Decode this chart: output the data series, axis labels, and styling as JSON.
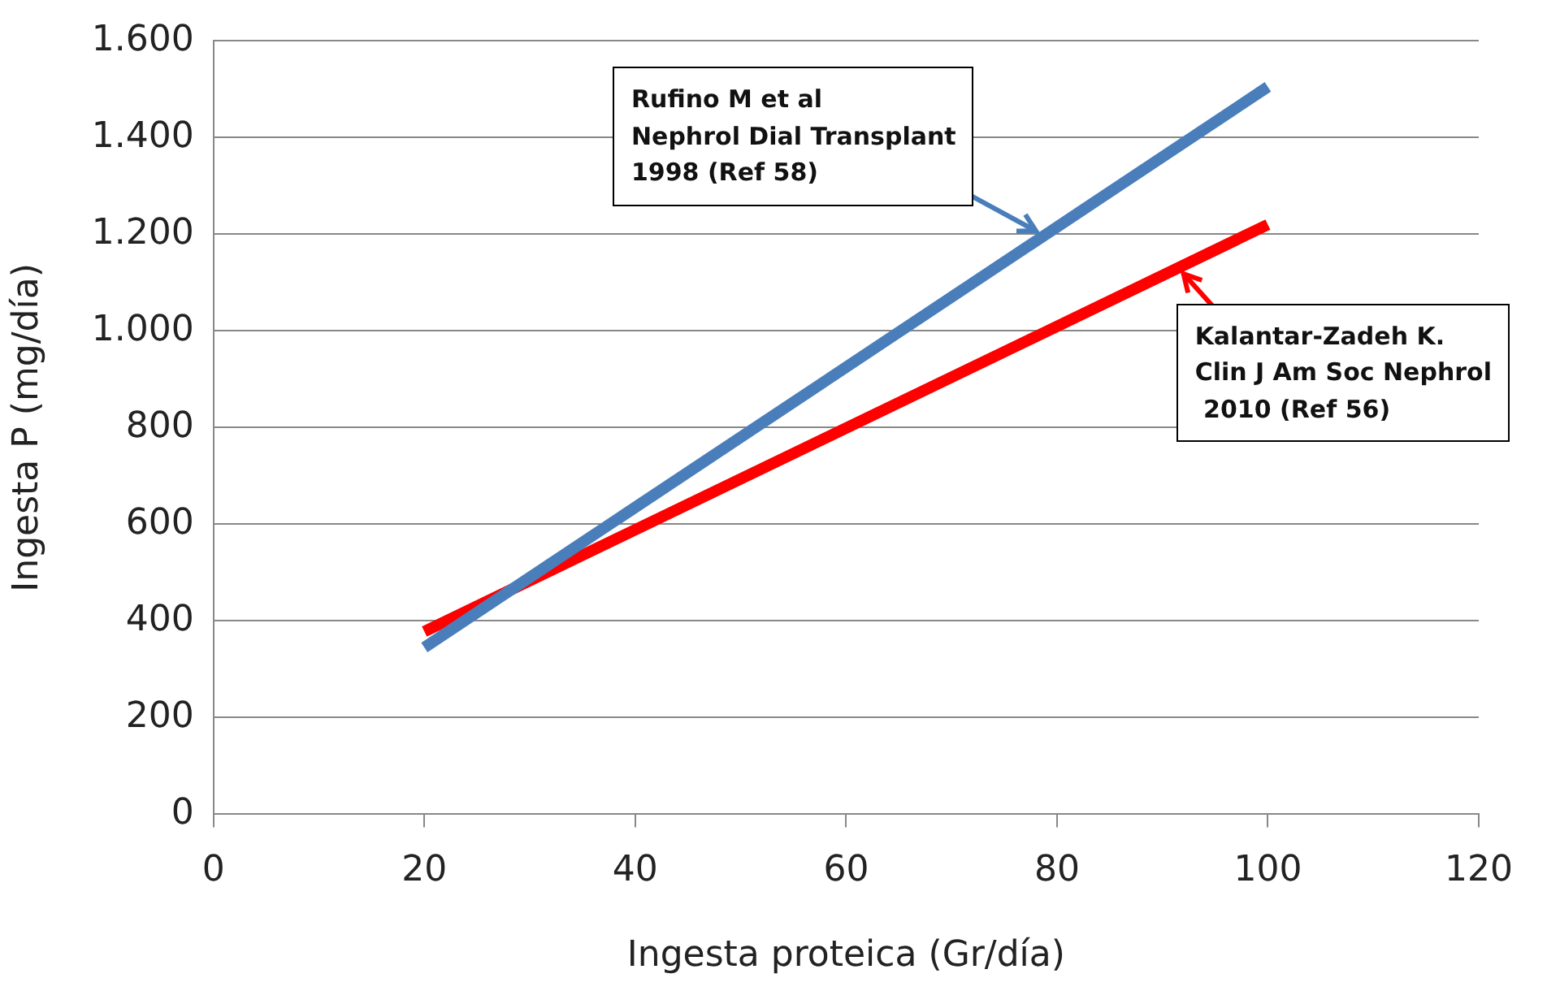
{
  "chart_data": {
    "type": "line",
    "xlabel": "Ingesta proteica (Gr/día)",
    "ylabel": "Ingesta P (mg/día)",
    "xlim": [
      0,
      120
    ],
    "xticks": [
      0,
      20,
      40,
      60,
      80,
      100,
      120
    ],
    "ylim": [
      0,
      1600
    ],
    "yticks": [
      {
        "value": 0,
        "label": "0"
      },
      {
        "value": 200,
        "label": "200"
      },
      {
        "value": 400,
        "label": "400"
      },
      {
        "value": 600,
        "label": "600"
      },
      {
        "value": 800,
        "label": "800"
      },
      {
        "value": 1000,
        "label": "1.000"
      },
      {
        "value": 1200,
        "label": "1.200"
      },
      {
        "value": 1400,
        "label": "1.400"
      },
      {
        "value": 1600,
        "label": "1.600"
      }
    ],
    "x": [
      20,
      100
    ],
    "grid": "y",
    "legend": false,
    "marker": "none",
    "line_style": "solid",
    "series": [
      {
        "color": "#4a7ebb",
        "values": [
          345,
          1505
        ]
      },
      {
        "color": "#ff0000",
        "values": [
          378,
          1220
        ]
      }
    ],
    "annotations": [
      {
        "text": "Rufino M et al\nNephrol Dial Transplant\n1998 (Ref 58)",
        "x": 78,
        "y": 1190
      },
      {
        "text": "Kalantar-Zadeh K.\nClin J Am Soc Nephrol\n 2010 (Ref 56)",
        "x": 92,
        "y": 1135
      }
    ]
  }
}
